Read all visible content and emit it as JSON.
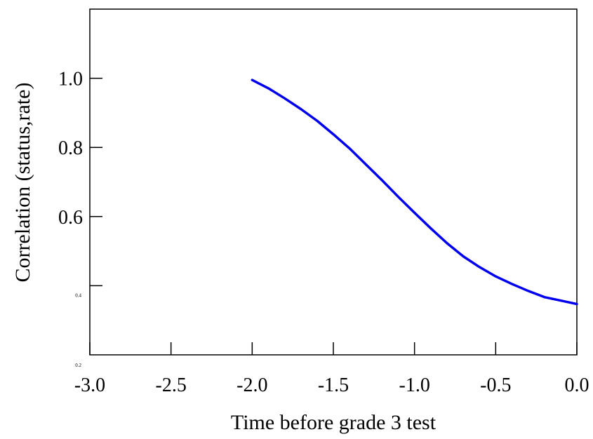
{
  "chart_data": {
    "type": "line",
    "title": "",
    "xlabel": "Time before grade 3 test",
    "ylabel": "Correlation (status,rate)",
    "xlim": [
      -3.0,
      0.0
    ],
    "ylim": [
      0.2,
      1.2
    ],
    "x_ticks": [
      -3.0,
      -2.5,
      -2.0,
      -1.5,
      -1.0,
      -0.5,
      0.0
    ],
    "x_tick_labels": [
      "-3.0",
      "-2.5",
      "-2.0",
      "-1.5",
      "-1.0",
      "-0.5",
      "0.0"
    ],
    "y_ticks": [
      0.4,
      0.6,
      0.8,
      1.0
    ],
    "y_tick_labels": [
      "0.4",
      "0.6",
      "0.8",
      "1.0"
    ],
    "y_corner_label": "0.2",
    "grid": false,
    "series": [
      {
        "color": "#0000ee",
        "x": [
          -2.0,
          -1.9,
          -1.8,
          -1.7,
          -1.6,
          -1.5,
          -1.4,
          -1.3,
          -1.2,
          -1.1,
          -1.0,
          -0.9,
          -0.8,
          -0.7,
          -0.6,
          -0.5,
          -0.4,
          -0.3,
          -0.2,
          -0.1,
          0.0
        ],
        "y": [
          0.995,
          0.971,
          0.942,
          0.911,
          0.877,
          0.838,
          0.797,
          0.751,
          0.705,
          0.657,
          0.611,
          0.566,
          0.523,
          0.485,
          0.454,
          0.427,
          0.405,
          0.385,
          0.367,
          0.357,
          0.347
        ]
      }
    ]
  }
}
